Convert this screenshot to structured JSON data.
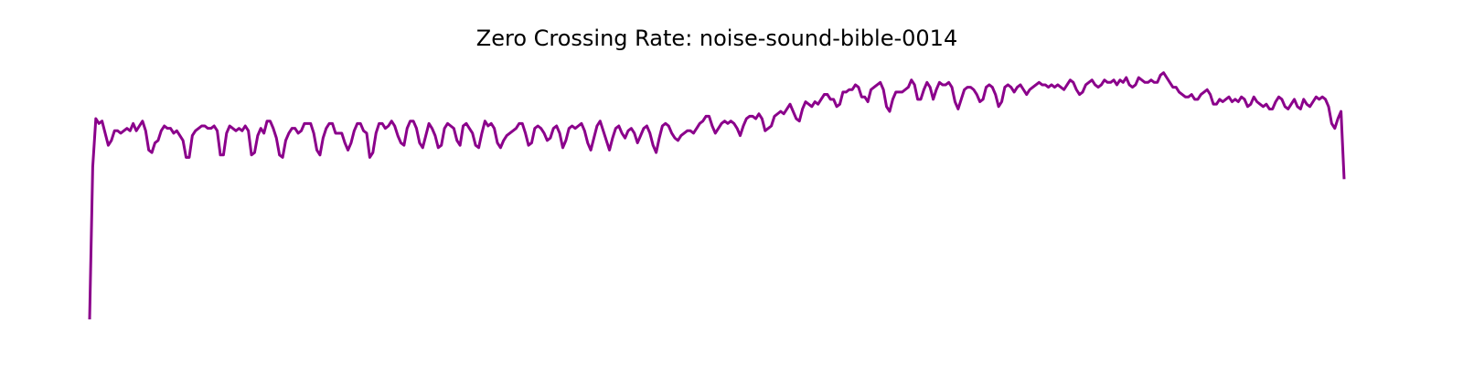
{
  "chart_data": {
    "type": "line",
    "title": "Zero Crossing Rate: noise-sound-bible-0014",
    "xlabel": "",
    "ylabel": "",
    "axes_visible": false,
    "grid": false,
    "legend": "none",
    "color": "#8b008b",
    "series": [
      {
        "values": [
          0.0,
          0.63,
          0.83,
          0.81,
          0.82,
          0.77,
          0.72,
          0.74,
          0.78,
          0.78,
          0.77,
          0.78,
          0.79,
          0.78,
          0.81,
          0.78,
          0.8,
          0.82,
          0.78,
          0.7,
          0.69,
          0.73,
          0.74,
          0.78,
          0.8,
          0.79,
          0.79,
          0.77,
          0.78,
          0.76,
          0.74,
          0.67,
          0.67,
          0.76,
          0.78,
          0.79,
          0.8,
          0.8,
          0.79,
          0.79,
          0.8,
          0.78,
          0.68,
          0.68,
          0.77,
          0.8,
          0.79,
          0.78,
          0.79,
          0.78,
          0.8,
          0.78,
          0.68,
          0.69,
          0.76,
          0.79,
          0.77,
          0.82,
          0.82,
          0.79,
          0.75,
          0.68,
          0.67,
          0.74,
          0.77,
          0.79,
          0.79,
          0.77,
          0.78,
          0.81,
          0.81,
          0.81,
          0.77,
          0.7,
          0.68,
          0.75,
          0.79,
          0.81,
          0.81,
          0.77,
          0.77,
          0.77,
          0.73,
          0.7,
          0.73,
          0.78,
          0.81,
          0.81,
          0.78,
          0.77,
          0.67,
          0.69,
          0.77,
          0.81,
          0.81,
          0.79,
          0.8,
          0.82,
          0.8,
          0.76,
          0.73,
          0.72,
          0.79,
          0.82,
          0.82,
          0.79,
          0.73,
          0.71,
          0.76,
          0.81,
          0.79,
          0.76,
          0.71,
          0.72,
          0.79,
          0.81,
          0.8,
          0.79,
          0.74,
          0.72,
          0.8,
          0.81,
          0.79,
          0.77,
          0.72,
          0.71,
          0.77,
          0.82,
          0.8,
          0.81,
          0.79,
          0.73,
          0.71,
          0.74,
          0.76,
          0.77,
          0.78,
          0.79,
          0.81,
          0.81,
          0.77,
          0.72,
          0.73,
          0.79,
          0.8,
          0.79,
          0.77,
          0.74,
          0.75,
          0.79,
          0.8,
          0.77,
          0.71,
          0.74,
          0.79,
          0.8,
          0.79,
          0.8,
          0.81,
          0.78,
          0.73,
          0.7,
          0.75,
          0.8,
          0.82,
          0.78,
          0.74,
          0.7,
          0.75,
          0.79,
          0.8,
          0.77,
          0.75,
          0.78,
          0.79,
          0.77,
          0.73,
          0.76,
          0.79,
          0.8,
          0.77,
          0.72,
          0.69,
          0.75,
          0.8,
          0.81,
          0.8,
          0.77,
          0.75,
          0.74,
          0.76,
          0.77,
          0.78,
          0.78,
          0.77,
          0.79,
          0.81,
          0.82,
          0.84,
          0.84,
          0.8,
          0.77,
          0.79,
          0.81,
          0.82,
          0.81,
          0.82,
          0.81,
          0.79,
          0.76,
          0.8,
          0.83,
          0.84,
          0.84,
          0.83,
          0.85,
          0.83,
          0.78,
          0.79,
          0.8,
          0.84,
          0.85,
          0.86,
          0.85,
          0.87,
          0.89,
          0.86,
          0.83,
          0.82,
          0.87,
          0.9,
          0.89,
          0.88,
          0.9,
          0.89,
          0.91,
          0.93,
          0.93,
          0.91,
          0.91,
          0.88,
          0.89,
          0.94,
          0.94,
          0.95,
          0.95,
          0.97,
          0.96,
          0.92,
          0.92,
          0.9,
          0.95,
          0.96,
          0.97,
          0.98,
          0.95,
          0.88,
          0.86,
          0.91,
          0.94,
          0.94,
          0.94,
          0.95,
          0.96,
          0.99,
          0.97,
          0.91,
          0.91,
          0.95,
          0.98,
          0.96,
          0.91,
          0.95,
          0.98,
          0.97,
          0.97,
          0.98,
          0.96,
          0.9,
          0.87,
          0.91,
          0.95,
          0.96,
          0.96,
          0.95,
          0.93,
          0.9,
          0.91,
          0.96,
          0.97,
          0.96,
          0.93,
          0.88,
          0.9,
          0.96,
          0.97,
          0.96,
          0.94,
          0.96,
          0.97,
          0.95,
          0.93,
          0.95,
          0.96,
          0.97,
          0.98,
          0.97,
          0.97,
          0.96,
          0.97,
          0.96,
          0.97,
          0.96,
          0.95,
          0.97,
          0.99,
          0.98,
          0.95,
          0.93,
          0.94,
          0.97,
          0.98,
          0.99,
          0.97,
          0.96,
          0.97,
          0.99,
          0.98,
          0.98,
          0.99,
          0.97,
          0.99,
          0.98,
          1.0,
          0.97,
          0.96,
          0.97,
          1.0,
          0.99,
          0.98,
          0.98,
          0.99,
          0.98,
          0.98,
          1.01,
          1.02,
          1.0,
          0.98,
          0.96,
          0.96,
          0.94,
          0.93,
          0.92,
          0.92,
          0.93,
          0.91,
          0.91,
          0.93,
          0.94,
          0.95,
          0.93,
          0.89,
          0.89,
          0.91,
          0.9,
          0.91,
          0.92,
          0.9,
          0.91,
          0.9,
          0.92,
          0.91,
          0.88,
          0.89,
          0.92,
          0.9,
          0.89,
          0.88,
          0.89,
          0.87,
          0.87,
          0.9,
          0.92,
          0.91,
          0.88,
          0.87,
          0.89,
          0.91,
          0.88,
          0.87,
          0.91,
          0.89,
          0.88,
          0.9,
          0.92,
          0.91,
          0.92,
          0.91,
          0.88,
          0.81,
          0.79,
          0.83,
          0.86,
          0.58
        ]
      }
    ]
  }
}
